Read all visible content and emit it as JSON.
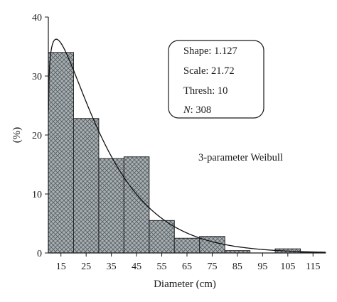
{
  "chart_data": {
    "type": "bar",
    "subtype": "histogram-with-fitted-curve",
    "xlabel": "Diameter (cm)",
    "ylabel": "(%)",
    "xlim": [
      10,
      120
    ],
    "ylim": [
      0,
      40
    ],
    "x_ticks": [
      "15",
      "25",
      "35",
      "45",
      "55",
      "65",
      "75",
      "85",
      "95",
      "105",
      "115"
    ],
    "x_tick_values": [
      15,
      25,
      35,
      45,
      55,
      65,
      75,
      85,
      95,
      105,
      115
    ],
    "y_ticks": [
      "0",
      "10",
      "20",
      "30",
      "40"
    ],
    "y_tick_values": [
      0,
      10,
      20,
      30,
      40
    ],
    "bin_width": 10,
    "bins": [
      {
        "center": 15,
        "value": 34.0
      },
      {
        "center": 25,
        "value": 22.8
      },
      {
        "center": 35,
        "value": 16.0
      },
      {
        "center": 45,
        "value": 16.3
      },
      {
        "center": 55,
        "value": 5.5
      },
      {
        "center": 65,
        "value": 2.5
      },
      {
        "center": 75,
        "value": 2.8
      },
      {
        "center": 85,
        "value": 0.4
      },
      {
        "center": 95,
        "value": 0.0
      },
      {
        "center": 105,
        "value": 0.7
      },
      {
        "center": 115,
        "value": 0.1
      }
    ],
    "grid": false,
    "fit": {
      "shape": 1.127,
      "scale": 21.72,
      "thresh": 10,
      "n": 308
    },
    "stats_box": {
      "shape_label": "Shape: 1.127",
      "scale_label": "Scale: 21.72",
      "thresh_label": "Thresh: 10",
      "n_label_prefix": "N",
      "n_label_suffix": ": 308"
    },
    "annotation": "3-parameter Weibull",
    "colors": {
      "bar_fill": "#a8b0b4",
      "bar_edge": "#222222",
      "hatch": "#555c60",
      "curve": "#111111"
    }
  }
}
